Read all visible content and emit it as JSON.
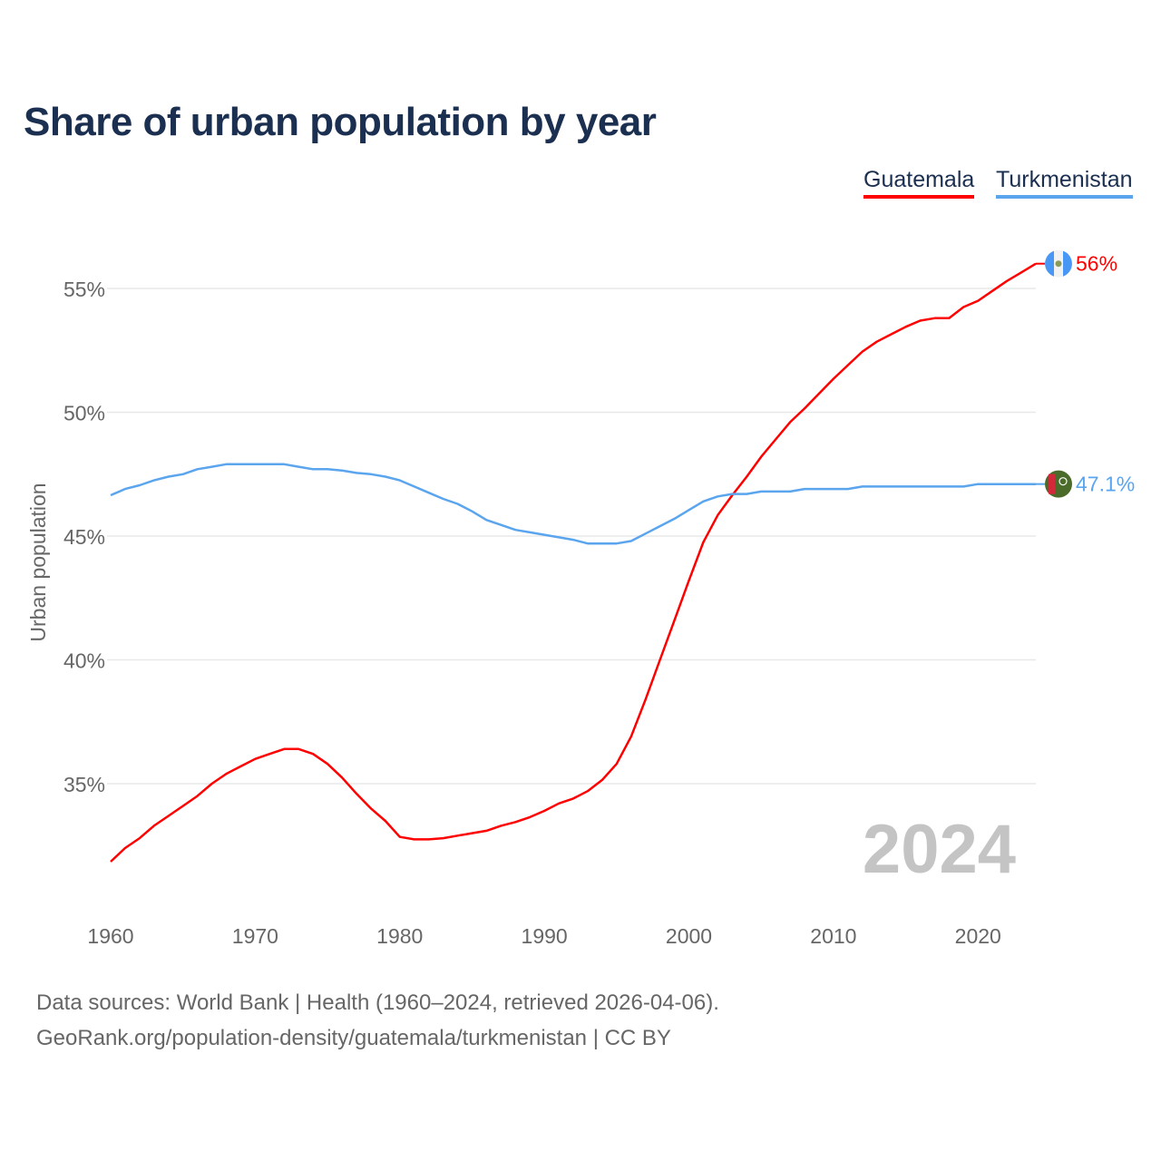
{
  "title": "Share of urban population by year",
  "legend": [
    {
      "label": "Guatemala",
      "color": "#ff0000"
    },
    {
      "label": "Turkmenistan",
      "color": "#5aa5ee"
    }
  ],
  "year_label": "2024",
  "footer": {
    "line1": "Data sources: World Bank | Health (1960–2024, retrieved 2026-04-06).",
    "line2": "GeoRank.org/population-density/guatemala/turkmenistan | CC BY"
  },
  "chart_data": {
    "type": "line",
    "title": "Share of urban population by year",
    "xlabel": "",
    "ylabel": "Urban population",
    "xlim": [
      1960,
      2024
    ],
    "ylim": [
      30,
      57
    ],
    "xticks": [
      1960,
      1970,
      1980,
      1990,
      2000,
      2010,
      2020
    ],
    "xtick_labels": [
      "1960",
      "1970",
      "1980",
      "1990",
      "2000",
      "2010",
      "2020"
    ],
    "yticks": [
      35,
      40,
      45,
      50,
      55
    ],
    "ytick_labels": [
      "35%",
      "40%",
      "45%",
      "50%",
      "55%"
    ],
    "grid": true,
    "legend_position": "top-right",
    "x": [
      1960,
      1961,
      1962,
      1963,
      1964,
      1965,
      1966,
      1967,
      1968,
      1969,
      1970,
      1971,
      1972,
      1973,
      1974,
      1975,
      1976,
      1977,
      1978,
      1979,
      1980,
      1981,
      1982,
      1983,
      1984,
      1985,
      1986,
      1987,
      1988,
      1989,
      1990,
      1991,
      1992,
      1993,
      1994,
      1995,
      1996,
      1997,
      1998,
      1999,
      2000,
      2001,
      2002,
      2003,
      2004,
      2005,
      2006,
      2007,
      2008,
      2009,
      2010,
      2011,
      2012,
      2013,
      2014,
      2015,
      2016,
      2017,
      2018,
      2019,
      2020,
      2021,
      2022,
      2023,
      2024
    ],
    "series": [
      {
        "name": "Guatemala",
        "color": "#ff0000",
        "end_label": "56%",
        "values": [
          31.85,
          32.4,
          32.8,
          33.3,
          33.7,
          34.1,
          34.5,
          35.0,
          35.4,
          35.7,
          36.0,
          36.2,
          36.4,
          36.4,
          36.2,
          35.8,
          35.25,
          34.6,
          34.0,
          33.5,
          32.85,
          32.75,
          32.75,
          32.8,
          32.9,
          33.0,
          33.1,
          33.3,
          33.45,
          33.65,
          33.9,
          34.2,
          34.4,
          34.7,
          35.15,
          35.8,
          36.9,
          38.4,
          40.0,
          41.6,
          43.2,
          44.75,
          45.85,
          46.65,
          47.4,
          48.2,
          48.9,
          49.6,
          50.15,
          50.75,
          51.35,
          51.9,
          52.45,
          52.85,
          53.15,
          53.45,
          53.7,
          53.8,
          53.8,
          54.25,
          54.5,
          54.9,
          55.3,
          55.65,
          56.0
        ]
      },
      {
        "name": "Turkmenistan",
        "color": "#5aa5ee",
        "end_label": "47.1%",
        "values": [
          46.65,
          46.9,
          47.05,
          47.25,
          47.4,
          47.5,
          47.7,
          47.8,
          47.9,
          47.9,
          47.9,
          47.9,
          47.9,
          47.8,
          47.7,
          47.7,
          47.65,
          47.55,
          47.5,
          47.4,
          47.25,
          47.0,
          46.75,
          46.5,
          46.3,
          46.0,
          45.65,
          45.45,
          45.25,
          45.15,
          45.05,
          44.95,
          44.85,
          44.7,
          44.7,
          44.7,
          44.8,
          45.1,
          45.4,
          45.7,
          46.05,
          46.4,
          46.6,
          46.7,
          46.7,
          46.8,
          46.8,
          46.8,
          46.9,
          46.9,
          46.9,
          46.9,
          47.0,
          47.0,
          47.0,
          47.0,
          47.0,
          47.0,
          47.0,
          47.0,
          47.1,
          47.1,
          47.1,
          47.1,
          47.1
        ]
      }
    ]
  }
}
